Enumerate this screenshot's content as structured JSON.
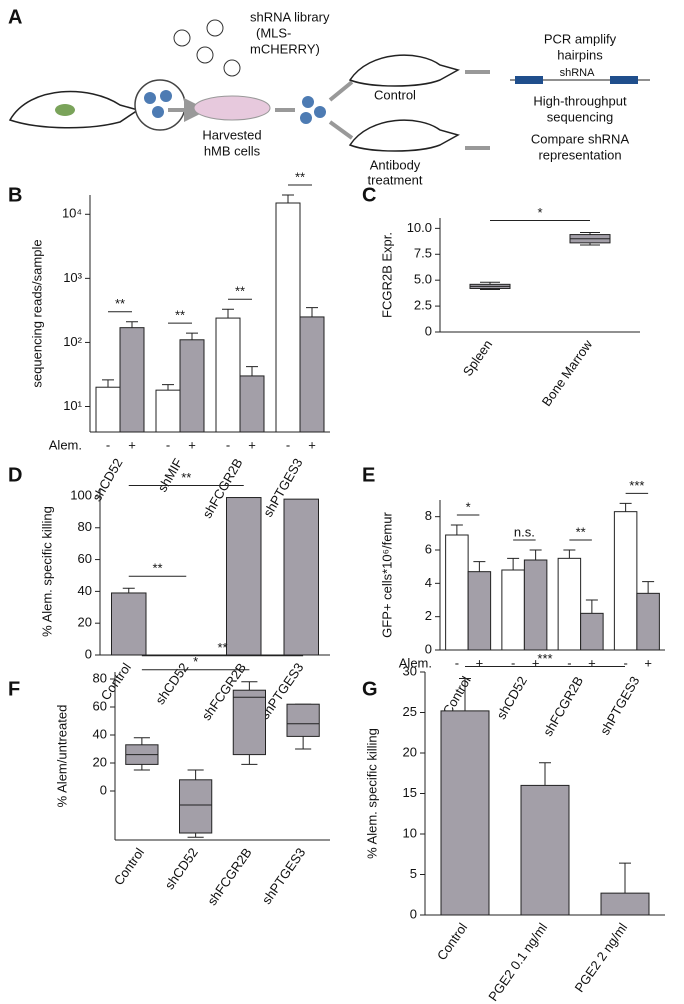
{
  "diagram": {
    "panel": "A",
    "library_label": [
      "shRNA library",
      "(MLS-",
      "mCHERRY)"
    ],
    "cells_label": [
      "Harvested",
      "hMB cells"
    ],
    "control_label": "Control",
    "treatment_label": [
      "Antibody",
      "treatment"
    ],
    "pcr_label": [
      "PCR amplify",
      "hairpins"
    ],
    "hairpin_label": "shRNA",
    "sequencing_label": [
      "High-throughput",
      "sequencing"
    ],
    "compare_label": [
      "Compare shRNA",
      "representation"
    ]
  },
  "chart_data": [
    {
      "type": "bar",
      "panel": "B",
      "ylabel": "sequencing reads/sample",
      "log_scale": true,
      "ylim": [
        4,
        20000
      ],
      "yticks": [
        {
          "value": 10,
          "label": "10¹"
        },
        {
          "value": 100,
          "label": "10²"
        },
        {
          "value": 1000,
          "label": "10³"
        },
        {
          "value": 10000,
          "label": "10⁴"
        }
      ],
      "group_label": "Alem.",
      "categories": [
        "shCD52",
        "shMIF",
        "shFCGR2B",
        "shPTGES3"
      ],
      "series": [
        {
          "name": "-",
          "color": "#ffffff",
          "values": [
            20,
            18,
            240,
            15000
          ],
          "errors": [
            6,
            4,
            90,
            5000
          ]
        },
        {
          "name": "+",
          "color": "#a39fa8",
          "values": [
            170,
            110,
            30,
            250
          ],
          "errors": [
            40,
            30,
            12,
            100
          ]
        }
      ],
      "significance": [
        "**",
        "**",
        "**",
        "**"
      ]
    },
    {
      "type": "box",
      "panel": "C",
      "ylabel": "FCGR2B Expr.",
      "ylim": [
        0,
        11
      ],
      "yticks": [
        0,
        {
          "value": 2.5,
          "label": "2.5"
        },
        {
          "value": 5,
          "label": "5.0"
        },
        {
          "value": 7.5,
          "label": "7.5"
        },
        {
          "value": 10,
          "label": "10.0"
        }
      ],
      "categories": [
        "Spleen",
        "Bone Marrow"
      ],
      "color": "#a39fa8",
      "boxes": [
        {
          "min": 4.1,
          "q1": 4.2,
          "median": 4.4,
          "q3": 4.6,
          "max": 4.8
        },
        {
          "min": 8.4,
          "q1": 8.6,
          "median": 9.0,
          "q3": 9.4,
          "max": 9.6
        }
      ],
      "significance": [
        "*"
      ]
    },
    {
      "type": "bar",
      "panel": "D",
      "ylabel": "% Alem. specific killing",
      "ylim": [
        0,
        105
      ],
      "yticks": [
        0,
        20,
        40,
        60,
        80,
        100
      ],
      "categories": [
        "Control",
        "shCD52",
        "shFCGR2B",
        "shPTGES3"
      ],
      "color": "#a39fa8",
      "values": [
        39,
        0,
        99,
        98
      ],
      "errors": [
        3,
        0,
        0,
        0
      ],
      "significance": [
        "**",
        "**"
      ]
    },
    {
      "type": "bar",
      "panel": "E",
      "ylabel": "GFP+ cells*10⁶/femur",
      "ylim": [
        0,
        9
      ],
      "yticks": [
        0,
        2,
        4,
        6,
        8
      ],
      "group_label": "Alem.",
      "categories": [
        "Control",
        "shCD52",
        "shFCGR2B",
        "shPTGES3"
      ],
      "series": [
        {
          "name": "-",
          "color": "#ffffff",
          "values": [
            6.9,
            4.8,
            5.5,
            8.3
          ],
          "errors": [
            0.6,
            0.7,
            0.5,
            0.5
          ]
        },
        {
          "name": "+",
          "color": "#a39fa8",
          "values": [
            4.7,
            5.4,
            2.2,
            3.4
          ],
          "errors": [
            0.6,
            0.6,
            0.8,
            0.7
          ]
        }
      ],
      "significance": [
        "*",
        "n.s.",
        "**",
        "***"
      ]
    },
    {
      "type": "box",
      "panel": "F",
      "ylabel": "% Alem/untreated",
      "ylim": [
        -35,
        85
      ],
      "yticks": [
        0,
        20,
        40,
        60,
        80
      ],
      "categories": [
        "Control",
        "shCD52",
        "shFCGR2B",
        "shPTGES3"
      ],
      "color": "#a39fa8",
      "boxes": [
        {
          "min": 15,
          "q1": 19,
          "median": 26,
          "q3": 33,
          "max": 38
        },
        {
          "min": -33,
          "q1": -30,
          "median": -10,
          "q3": 8,
          "max": 15
        },
        {
          "min": 19,
          "q1": 26,
          "median": 67,
          "q3": 72,
          "max": 78
        },
        {
          "min": 30,
          "q1": 39,
          "median": 48,
          "q3": 62,
          "max": 62
        }
      ],
      "significance": [
        "*",
        "**"
      ]
    },
    {
      "type": "bar",
      "panel": "G",
      "ylabel": "% Alem. specific killing",
      "ylim": [
        0,
        30
      ],
      "yticks": [
        0,
        5,
        10,
        15,
        20,
        25,
        30
      ],
      "categories": [
        "Control",
        "PGE2 0.1 ng/ml",
        "PGE2 2 ng/ml"
      ],
      "color": "#a39fa8",
      "values": [
        25.2,
        16,
        2.7
      ],
      "errors": [
        4,
        2.8,
        3.7
      ],
      "significance": [
        "***"
      ]
    }
  ]
}
